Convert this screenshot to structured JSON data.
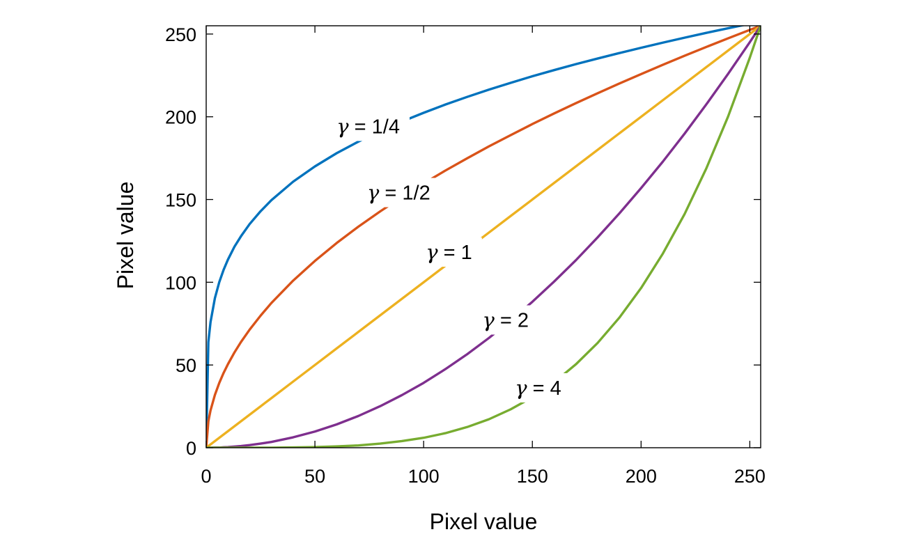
{
  "chart_data": {
    "type": "line",
    "title": "",
    "xlabel": "Pixel value",
    "ylabel": "Pixel value",
    "xlim": [
      0,
      255
    ],
    "ylim": [
      0,
      255
    ],
    "xticks": [
      0,
      50,
      100,
      150,
      200,
      250
    ],
    "yticks": [
      0,
      50,
      100,
      150,
      200,
      250
    ],
    "grid": false,
    "legend": "none",
    "colors": {
      "axes": "#000000",
      "background": "#ffffff"
    },
    "x": [
      0,
      1,
      2,
      4,
      6,
      8,
      10,
      13,
      16,
      20,
      25,
      30,
      40,
      50,
      60,
      70,
      80,
      90,
      100,
      110,
      120,
      130,
      140,
      150,
      160,
      170,
      180,
      190,
      200,
      210,
      220,
      230,
      240,
      250,
      255
    ],
    "series": [
      {
        "label": "γ = 1/4",
        "gamma": 0.25,
        "color": "#0072BD",
        "values": [
          0,
          63.9,
          76.0,
          90.4,
          100.0,
          107.5,
          113.7,
          121.5,
          127.8,
          135.2,
          142.9,
          149.6,
          160.8,
          170.0,
          178.0,
          185.0,
          191.3,
          197.1,
          202.4,
          207.4,
          212.0,
          216.4,
          220.5,
          224.5,
          228.2,
          231.8,
          235.2,
          238.5,
          241.7,
          244.8,
          247.8,
          250.7,
          253.5,
          256.2,
          255.0
        ],
        "label_anchor": [
          60,
          190
        ]
      },
      {
        "label": "γ = 1/2",
        "gamma": 0.5,
        "color": "#D95319",
        "values": [
          0,
          16.0,
          22.6,
          31.9,
          39.1,
          45.2,
          50.5,
          57.6,
          63.9,
          71.4,
          79.8,
          87.5,
          101.0,
          112.9,
          123.7,
          133.6,
          142.8,
          151.5,
          159.7,
          167.5,
          174.9,
          182.1,
          188.9,
          195.6,
          202.0,
          208.2,
          214.2,
          220.1,
          225.8,
          231.4,
          236.9,
          242.2,
          247.4,
          252.5,
          255.0
        ],
        "label_anchor": [
          74,
          150
        ]
      },
      {
        "label": "γ = 1",
        "gamma": 1,
        "color": "#EDB120",
        "values": [
          0,
          1,
          2,
          4,
          6,
          8,
          10,
          13,
          16,
          20,
          25,
          30,
          40,
          50,
          60,
          70,
          80,
          90,
          100,
          110,
          120,
          130,
          140,
          150,
          160,
          170,
          180,
          190,
          200,
          210,
          220,
          230,
          240,
          250,
          255
        ],
        "label_anchor": [
          101,
          114
        ]
      },
      {
        "label": "γ = 2",
        "gamma": 2,
        "color": "#7E2F8E",
        "values": [
          0,
          0.0,
          0.0,
          0.1,
          0.1,
          0.3,
          0.4,
          0.7,
          1.0,
          1.6,
          2.5,
          3.5,
          6.3,
          9.8,
          14.1,
          19.2,
          25.1,
          31.8,
          39.2,
          47.5,
          56.5,
          66.3,
          76.9,
          88.2,
          100.4,
          113.3,
          127.1,
          141.6,
          156.9,
          172.9,
          189.8,
          207.5,
          225.9,
          245.1,
          255.0
        ],
        "label_anchor": [
          127,
          73
        ]
      },
      {
        "label": "γ = 4",
        "gamma": 4,
        "color": "#77AC30",
        "values": [
          0,
          0.0,
          0.0,
          0.0,
          0.0,
          0.0,
          0.0,
          0.0,
          0.0,
          0.0,
          0.0,
          0.0,
          0.2,
          0.4,
          0.8,
          1.4,
          2.5,
          4.0,
          6.0,
          8.8,
          12.5,
          17.2,
          23.2,
          30.5,
          39.5,
          50.4,
          63.3,
          78.6,
          96.5,
          117.3,
          141.2,
          168.8,
          200.1,
          235.7,
          255.0
        ],
        "label_anchor": [
          142,
          32
        ]
      }
    ]
  }
}
